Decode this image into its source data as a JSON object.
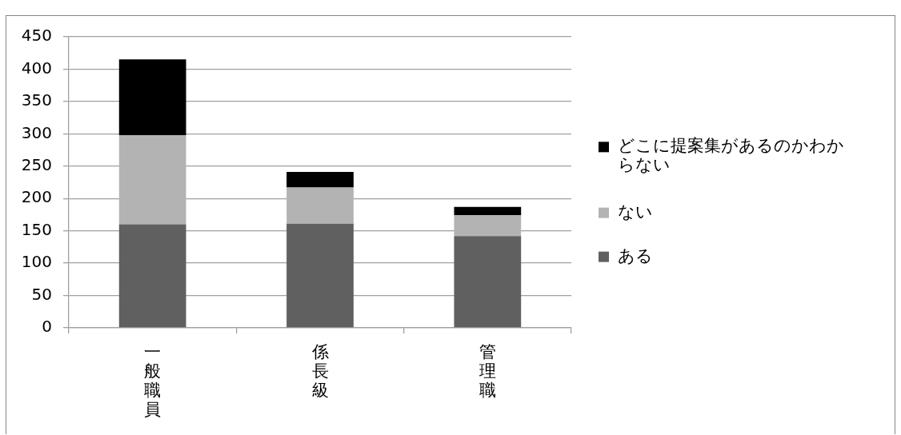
{
  "chart_data": {
    "type": "bar",
    "categories": [
      "一般職員",
      "係長級",
      "管理職"
    ],
    "series": [
      {
        "name": "ある",
        "color": "#606060",
        "values": [
          160,
          161,
          142
        ]
      },
      {
        "name": "ない",
        "color": "#b3b3b3",
        "values": [
          138,
          56,
          32
        ]
      },
      {
        "name": "どこに提案集があるのかわからない",
        "color": "#000000",
        "values": [
          117,
          24,
          13
        ]
      }
    ],
    "stacked": true,
    "ylim": [
      0,
      450
    ],
    "yticks": [
      0,
      50,
      100,
      150,
      200,
      250,
      300,
      350,
      400,
      450
    ],
    "grid": "y",
    "legend": "right"
  }
}
